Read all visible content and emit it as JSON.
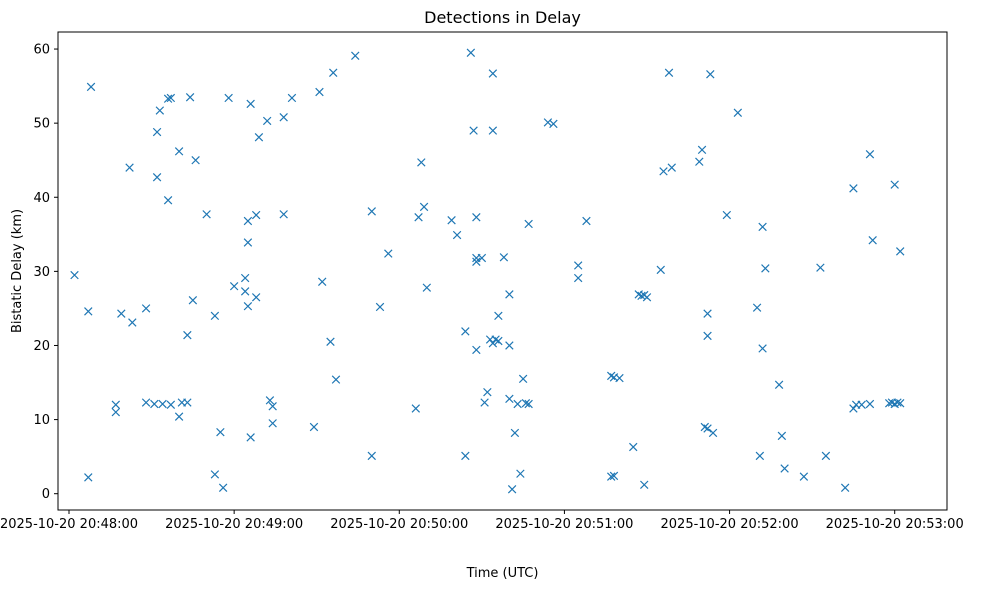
{
  "chart_data": {
    "type": "scatter",
    "title": "Detections in Delay",
    "xlabel": "Time (UTC)",
    "ylabel": "Bistatic Delay (km)",
    "marker": "x",
    "color": "#1f77b4",
    "grid": false,
    "x_is_time": true,
    "xlim": [
      "2025-10-20 20:47:56",
      "2025-10-20 20:53:19"
    ],
    "ylim": [
      -2.2,
      62.3
    ],
    "x_ticks": [
      {
        "value": "2025-10-20 20:48:00",
        "label": "2025-10-20 20:48:00"
      },
      {
        "value": "2025-10-20 20:49:00",
        "label": "2025-10-20 20:49:00"
      },
      {
        "value": "2025-10-20 20:50:00",
        "label": "2025-10-20 20:50:00"
      },
      {
        "value": "2025-10-20 20:51:00",
        "label": "2025-10-20 20:51:00"
      },
      {
        "value": "2025-10-20 20:52:00",
        "label": "2025-10-20 20:52:00"
      },
      {
        "value": "2025-10-20 20:53:00",
        "label": "2025-10-20 20:53:00"
      }
    ],
    "y_ticks": [
      {
        "value": 0,
        "label": "0"
      },
      {
        "value": 10,
        "label": "10"
      },
      {
        "value": 20,
        "label": "20"
      },
      {
        "value": 30,
        "label": "30"
      },
      {
        "value": 40,
        "label": "40"
      },
      {
        "value": 50,
        "label": "50"
      },
      {
        "value": 60,
        "label": "60"
      }
    ],
    "series": [
      {
        "points": [
          [
            "2025-10-20 20:48:02",
            29.5
          ],
          [
            "2025-10-20 20:48:07",
            24.6
          ],
          [
            "2025-10-20 20:48:07",
            2.2
          ],
          [
            "2025-10-20 20:48:08",
            54.9
          ],
          [
            "2025-10-20 20:48:17",
            12.0
          ],
          [
            "2025-10-20 20:48:17",
            11.0
          ],
          [
            "2025-10-20 20:48:19",
            24.3
          ],
          [
            "2025-10-20 20:48:22",
            44.0
          ],
          [
            "2025-10-20 20:48:23",
            23.1
          ],
          [
            "2025-10-20 20:48:28",
            25.0
          ],
          [
            "2025-10-20 20:48:28",
            12.3
          ],
          [
            "2025-10-20 20:48:31",
            12.1
          ],
          [
            "2025-10-20 20:48:32",
            48.8
          ],
          [
            "2025-10-20 20:48:32",
            42.7
          ],
          [
            "2025-10-20 20:48:33",
            51.7
          ],
          [
            "2025-10-20 20:48:34",
            12.1
          ],
          [
            "2025-10-20 20:48:36",
            39.6
          ],
          [
            "2025-10-20 20:48:36",
            53.3
          ],
          [
            "2025-10-20 20:48:37",
            53.4
          ],
          [
            "2025-10-20 20:48:37",
            12.0
          ],
          [
            "2025-10-20 20:48:40",
            46.2
          ],
          [
            "2025-10-20 20:48:40",
            10.4
          ],
          [
            "2025-10-20 20:48:41",
            12.3
          ],
          [
            "2025-10-20 20:48:43",
            21.4
          ],
          [
            "2025-10-20 20:48:43",
            12.3
          ],
          [
            "2025-10-20 20:48:44",
            53.5
          ],
          [
            "2025-10-20 20:48:45",
            26.1
          ],
          [
            "2025-10-20 20:48:46",
            45.0
          ],
          [
            "2025-10-20 20:48:50",
            37.7
          ],
          [
            "2025-10-20 20:48:53",
            24.0
          ],
          [
            "2025-10-20 20:48:53",
            2.6
          ],
          [
            "2025-10-20 20:48:55",
            8.3
          ],
          [
            "2025-10-20 20:48:56",
            0.8
          ],
          [
            "2025-10-20 20:48:58",
            53.4
          ],
          [
            "2025-10-20 20:49:00",
            28.0
          ],
          [
            "2025-10-20 20:49:04",
            29.1
          ],
          [
            "2025-10-20 20:49:04",
            27.3
          ],
          [
            "2025-10-20 20:49:05",
            36.8
          ],
          [
            "2025-10-20 20:49:05",
            33.9
          ],
          [
            "2025-10-20 20:49:05",
            25.3
          ],
          [
            "2025-10-20 20:49:06",
            52.6
          ],
          [
            "2025-10-20 20:49:06",
            7.6
          ],
          [
            "2025-10-20 20:49:08",
            37.6
          ],
          [
            "2025-10-20 20:49:08",
            26.5
          ],
          [
            "2025-10-20 20:49:09",
            48.1
          ],
          [
            "2025-10-20 20:49:12",
            50.3
          ],
          [
            "2025-10-20 20:49:13",
            12.6
          ],
          [
            "2025-10-20 20:49:14",
            11.8
          ],
          [
            "2025-10-20 20:49:14",
            9.5
          ],
          [
            "2025-10-20 20:49:18",
            50.8
          ],
          [
            "2025-10-20 20:49:18",
            37.7
          ],
          [
            "2025-10-20 20:49:21",
            53.4
          ],
          [
            "2025-10-20 20:49:29",
            9.0
          ],
          [
            "2025-10-20 20:49:31",
            54.2
          ],
          [
            "2025-10-20 20:49:32",
            28.6
          ],
          [
            "2025-10-20 20:49:35",
            20.5
          ],
          [
            "2025-10-20 20:49:36",
            56.8
          ],
          [
            "2025-10-20 20:49:37",
            15.4
          ],
          [
            "2025-10-20 20:49:44",
            59.1
          ],
          [
            "2025-10-20 20:49:50",
            5.1
          ],
          [
            "2025-10-20 20:49:50",
            38.1
          ],
          [
            "2025-10-20 20:49:53",
            25.2
          ],
          [
            "2025-10-20 20:49:56",
            32.4
          ],
          [
            "2025-10-20 20:50:06",
            11.5
          ],
          [
            "2025-10-20 20:50:07",
            37.3
          ],
          [
            "2025-10-20 20:50:08",
            44.7
          ],
          [
            "2025-10-20 20:50:09",
            38.7
          ],
          [
            "2025-10-20 20:50:10",
            27.8
          ],
          [
            "2025-10-20 20:50:19",
            36.9
          ],
          [
            "2025-10-20 20:50:21",
            34.9
          ],
          [
            "2025-10-20 20:50:24",
            21.9
          ],
          [
            "2025-10-20 20:50:24",
            5.1
          ],
          [
            "2025-10-20 20:50:26",
            59.5
          ],
          [
            "2025-10-20 20:50:27",
            49.0
          ],
          [
            "2025-10-20 20:50:28",
            37.3
          ],
          [
            "2025-10-20 20:50:28",
            31.8
          ],
          [
            "2025-10-20 20:50:28",
            19.4
          ],
          [
            "2025-10-20 20:50:28",
            31.3
          ],
          [
            "2025-10-20 20:50:30",
            31.8
          ],
          [
            "2025-10-20 20:50:31",
            12.3
          ],
          [
            "2025-10-20 20:50:32",
            13.7
          ],
          [
            "2025-10-20 20:50:33",
            20.8
          ],
          [
            "2025-10-20 20:50:34",
            56.7
          ],
          [
            "2025-10-20 20:50:34",
            49.0
          ],
          [
            "2025-10-20 20:50:34",
            20.3
          ],
          [
            "2025-10-20 20:50:35",
            20.8
          ],
          [
            "2025-10-20 20:50:36",
            20.6
          ],
          [
            "2025-10-20 20:50:36",
            24.0
          ],
          [
            "2025-10-20 20:50:38",
            31.9
          ],
          [
            "2025-10-20 20:50:40",
            12.8
          ],
          [
            "2025-10-20 20:50:40",
            26.9
          ],
          [
            "2025-10-20 20:50:40",
            20.0
          ],
          [
            "2025-10-20 20:50:41",
            0.6
          ],
          [
            "2025-10-20 20:50:42",
            8.2
          ],
          [
            "2025-10-20 20:50:43",
            12.1
          ],
          [
            "2025-10-20 20:50:44",
            2.7
          ],
          [
            "2025-10-20 20:50:45",
            15.5
          ],
          [
            "2025-10-20 20:50:46",
            12.2
          ],
          [
            "2025-10-20 20:50:47",
            36.4
          ],
          [
            "2025-10-20 20:50:47",
            12.1
          ],
          [
            "2025-10-20 20:50:54",
            50.1
          ],
          [
            "2025-10-20 20:50:56",
            49.9
          ],
          [
            "2025-10-20 20:51:05",
            30.8
          ],
          [
            "2025-10-20 20:51:05",
            29.1
          ],
          [
            "2025-10-20 20:51:08",
            36.8
          ],
          [
            "2025-10-20 20:51:17",
            15.9
          ],
          [
            "2025-10-20 20:51:17",
            2.3
          ],
          [
            "2025-10-20 20:51:18",
            2.4
          ],
          [
            "2025-10-20 20:51:18",
            15.7
          ],
          [
            "2025-10-20 20:51:20",
            15.6
          ],
          [
            "2025-10-20 20:51:25",
            6.3
          ],
          [
            "2025-10-20 20:51:27",
            26.9
          ],
          [
            "2025-10-20 20:51:28",
            26.7
          ],
          [
            "2025-10-20 20:51:29",
            1.2
          ],
          [
            "2025-10-20 20:51:29",
            26.8
          ],
          [
            "2025-10-20 20:51:30",
            26.5
          ],
          [
            "2025-10-20 20:51:35",
            30.2
          ],
          [
            "2025-10-20 20:51:36",
            43.5
          ],
          [
            "2025-10-20 20:51:38",
            56.8
          ],
          [
            "2025-10-20 20:51:39",
            44.0
          ],
          [
            "2025-10-20 20:51:49",
            44.8
          ],
          [
            "2025-10-20 20:51:50",
            46.4
          ],
          [
            "2025-10-20 20:51:51",
            9.0
          ],
          [
            "2025-10-20 20:51:52",
            21.3
          ],
          [
            "2025-10-20 20:51:52",
            8.8
          ],
          [
            "2025-10-20 20:51:52",
            24.3
          ],
          [
            "2025-10-20 20:51:53",
            56.6
          ],
          [
            "2025-10-20 20:51:54",
            8.2
          ],
          [
            "2025-10-20 20:51:59",
            37.6
          ],
          [
            "2025-10-20 20:52:03",
            51.4
          ],
          [
            "2025-10-20 20:52:10",
            25.1
          ],
          [
            "2025-10-20 20:52:11",
            5.1
          ],
          [
            "2025-10-20 20:52:12",
            19.6
          ],
          [
            "2025-10-20 20:52:12",
            36.0
          ],
          [
            "2025-10-20 20:52:13",
            30.4
          ],
          [
            "2025-10-20 20:52:18",
            14.7
          ],
          [
            "2025-10-20 20:52:19",
            7.8
          ],
          [
            "2025-10-20 20:52:20",
            3.4
          ],
          [
            "2025-10-20 20:52:27",
            2.3
          ],
          [
            "2025-10-20 20:52:33",
            30.5
          ],
          [
            "2025-10-20 20:52:35",
            5.1
          ],
          [
            "2025-10-20 20:52:42",
            0.8
          ],
          [
            "2025-10-20 20:52:45",
            41.2
          ],
          [
            "2025-10-20 20:52:45",
            11.5
          ],
          [
            "2025-10-20 20:52:46",
            12.0
          ],
          [
            "2025-10-20 20:52:48",
            12.0
          ],
          [
            "2025-10-20 20:52:51",
            45.8
          ],
          [
            "2025-10-20 20:52:51",
            12.1
          ],
          [
            "2025-10-20 20:52:52",
            34.2
          ],
          [
            "2025-10-20 20:52:58",
            12.2
          ],
          [
            "2025-10-20 20:52:59",
            12.3
          ],
          [
            "2025-10-20 20:53:00",
            12.1
          ],
          [
            "2025-10-20 20:53:00",
            41.7
          ],
          [
            "2025-10-20 20:53:01",
            12.3
          ],
          [
            "2025-10-20 20:53:02",
            32.7
          ],
          [
            "2025-10-20 20:53:02",
            12.2
          ]
        ]
      }
    ]
  }
}
